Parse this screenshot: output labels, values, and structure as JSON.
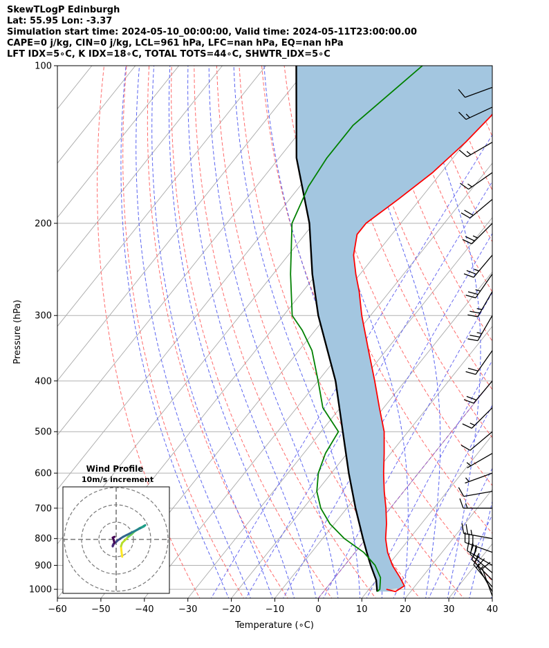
{
  "header": {
    "line1": "SkewTLogP Edinburgh",
    "line2": "Lat: 55.95   Lon: -3.37",
    "line3": "Simulation start time: 2024-05-10_00:00:00, Valid time: 2024-05-11T23:00:00.00",
    "line4": "CAPE=0 j/kg, CIN=0 j/kg, LCL=961 hPa, LFC=nan hPa, EQ=nan hPa",
    "line5": "LFT IDX=5∘C, K IDX=18∘C, TOTAL TOTS=44∘C, SHWTR_IDX=5∘C"
  },
  "chart_data": {
    "type": "skew-t log-p",
    "xlabel": "Temperature (∘C)",
    "ylabel": "Pressure (hPa)",
    "xlim": [
      -60,
      40
    ],
    "ylim": [
      1040,
      100
    ],
    "x_ticks": [
      -60,
      -50,
      -40,
      -30,
      -20,
      -10,
      0,
      10,
      20,
      30,
      40
    ],
    "x_tick_labels": [
      "−60",
      "−50",
      "−40",
      "−30",
      "−20",
      "−10",
      "0",
      "10",
      "20",
      "30",
      "40"
    ],
    "y_ticks": [
      1000,
      900,
      800,
      700,
      600,
      500,
      400,
      300,
      200,
      100
    ],
    "y_tick_labels": [
      "1000",
      "900",
      "800",
      "700",
      "600",
      "500",
      "400",
      "300",
      "200",
      "100"
    ],
    "grid": true,
    "colors": {
      "temperature": "#ff0000",
      "dewpoint": "#008000",
      "parcel": "#000000",
      "cape_fill": "#a3c6e0",
      "dry_adiabat": "#ff6a6a",
      "moist_adiabat": "#5a64f0",
      "mixing_ratio": "#6a6af0",
      "isotherm": "#aaaaaa",
      "freezing_level": "#9b4fc0"
    },
    "series": [
      {
        "key": "temperature",
        "pressure": [
          1000,
          1010,
          985,
          950,
          900,
          850,
          800,
          750,
          700,
          650,
          600,
          550,
          500,
          450,
          400,
          350,
          300,
          270,
          250,
          230,
          210,
          200,
          180,
          160,
          140,
          125,
          115,
          100
        ],
        "values": [
          14.0,
          16.5,
          17.5,
          15.0,
          11.0,
          7.5,
          4.5,
          2.0,
          -1.0,
          -4.5,
          -8.0,
          -11.5,
          -15.5,
          -21.0,
          -27.0,
          -34.0,
          -42.0,
          -47.0,
          -51.0,
          -55.0,
          -58.0,
          -58.0,
          -55.0,
          -52.0,
          -50.0,
          -49.0,
          -49.0,
          -48.0
        ]
      },
      {
        "key": "dewpoint",
        "pressure": [
          1010,
          1000,
          950,
          900,
          850,
          800,
          750,
          700,
          650,
          600,
          550,
          500,
          450,
          400,
          350,
          320,
          300,
          250,
          200,
          170,
          150,
          130,
          100
        ],
        "values": [
          12.3,
          12.5,
          10.5,
          7.0,
          2.0,
          -5.0,
          -11.0,
          -16.0,
          -20.0,
          -23.0,
          -25.0,
          -26.0,
          -34.0,
          -40.0,
          -47.0,
          -53.0,
          -58.0,
          -66.0,
          -75.0,
          -78.0,
          -79.0,
          -79.0,
          -74.0
        ]
      },
      {
        "key": "parcel",
        "pressure": [
          1010,
          961,
          900,
          850,
          800,
          700,
          600,
          500,
          400,
          300,
          250,
          200,
          150,
          100
        ],
        "values": [
          12.3,
          10.0,
          6.0,
          2.7,
          -0.7,
          -8.0,
          -16.0,
          -25.0,
          -36.0,
          -52.0,
          -61.0,
          -71.0,
          -86.0,
          -103.0
        ]
      }
    ],
    "wind_barbs": {
      "pressure": [
        1030,
        1010,
        990,
        960,
        930,
        900,
        850,
        800,
        700,
        650,
        600,
        550,
        500,
        450,
        400,
        350,
        300,
        270,
        250,
        230,
        200,
        180,
        160,
        140,
        120,
        110
      ],
      "speed_kt": [
        10,
        15,
        15,
        20,
        25,
        30,
        30,
        25,
        15,
        10,
        5,
        5,
        10,
        15,
        20,
        20,
        25,
        25,
        25,
        25,
        25,
        20,
        15,
        15,
        15,
        10
      ],
      "direction_deg": [
        340,
        330,
        320,
        315,
        310,
        300,
        290,
        280,
        270,
        260,
        250,
        240,
        230,
        225,
        220,
        215,
        210,
        210,
        215,
        220,
        225,
        230,
        235,
        240,
        245,
        250
      ]
    }
  },
  "hodograph": {
    "title": "Wind Profile",
    "subtitle": "10m/s increment",
    "u": [
      3.5,
      3.2,
      3.0,
      2.8,
      3.5,
      5.0,
      7.0,
      9.0,
      10.5,
      12.0,
      13.5,
      15.0,
      16.0,
      16.8,
      16.0,
      14.0,
      12.0,
      10.0,
      8.0,
      6.0,
      4.0,
      2.5,
      1.0,
      0.0,
      -1.5,
      -2.0,
      -2.0,
      -1.0,
      -1.5,
      -2.0,
      -1.0
    ],
    "v": [
      -10.0,
      -8.0,
      -6.0,
      -4.0,
      -2.0,
      -0.5,
      1.5,
      3.0,
      4.5,
      5.5,
      6.5,
      7.2,
      7.8,
      8.2,
      7.5,
      6.5,
      5.5,
      4.5,
      3.5,
      2.5,
      1.5,
      0.5,
      -0.5,
      -1.5,
      -2.5,
      -3.5,
      -4.0,
      -2.0,
      0.0,
      1.0,
      1.5
    ]
  }
}
